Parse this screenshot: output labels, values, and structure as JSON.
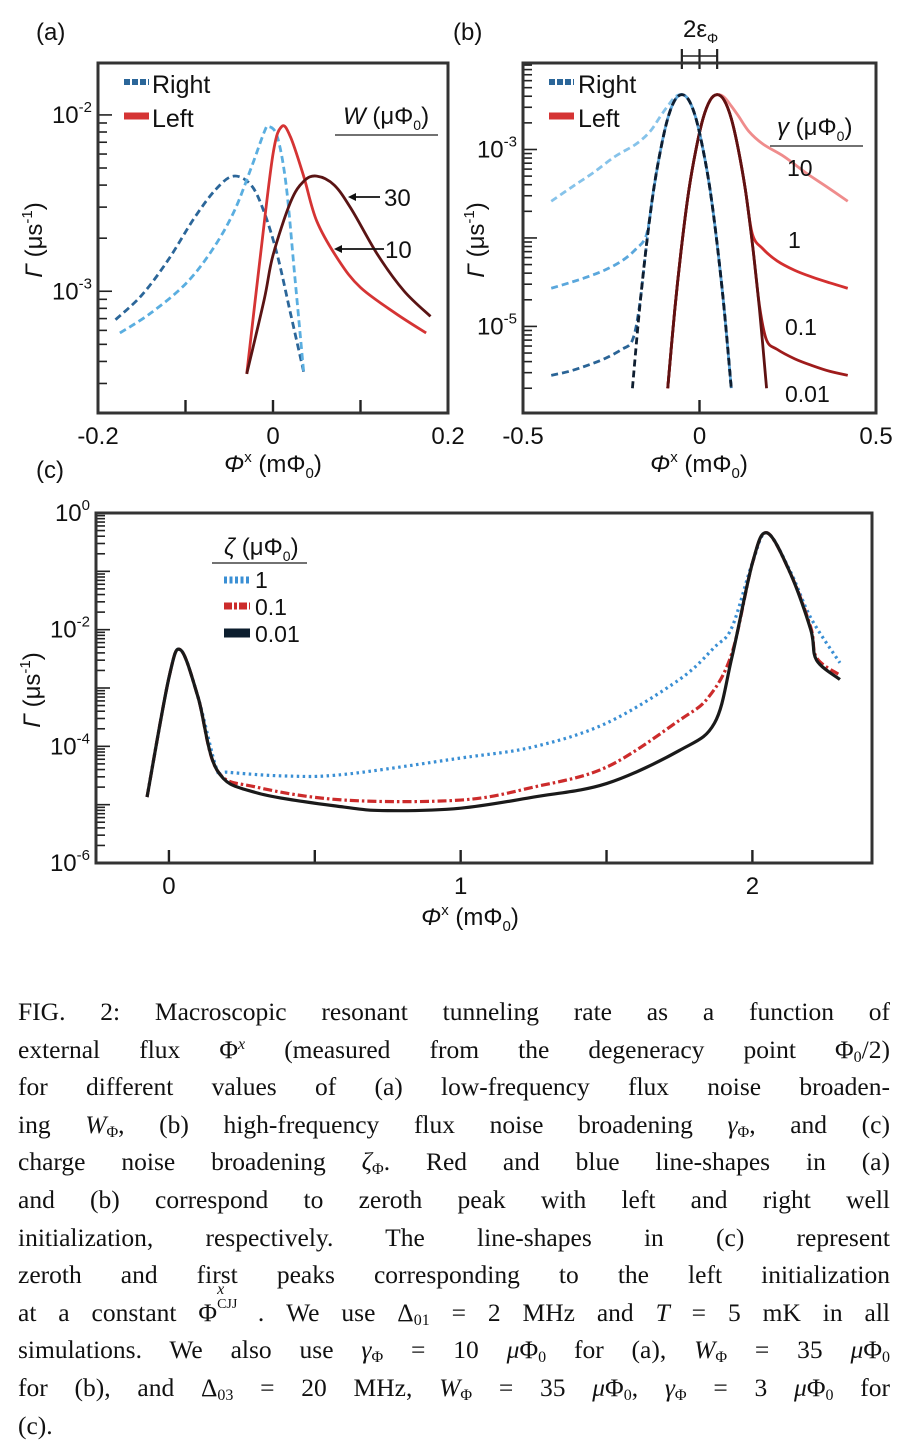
{
  "figure": {
    "panel_labels": [
      "(a)",
      "(b)",
      "(c)"
    ],
    "y_axis_label": {
      "symbol": "Γ",
      "unit": "(μs",
      "exp": "-1",
      "close": ")"
    },
    "x_axis_label": {
      "symbol": "Φ",
      "sup": "x",
      "unit": "(mΦ",
      "sub": "0",
      "close": ")"
    },
    "panel_a": {
      "legend": {
        "right": "Right",
        "left": "Left"
      },
      "legend_title": {
        "symbol": "W",
        "unit": " (μΦ",
        "sub": "0",
        "close": ")"
      },
      "annotations": [
        "30",
        "10"
      ]
    },
    "panel_b": {
      "legend": {
        "right": "Right",
        "left": "Left"
      },
      "legend_title": {
        "symbol": "γ",
        "unit": " (μΦ",
        "sub": "0",
        "close": ")"
      },
      "curve_labels": [
        "10",
        "1",
        "0.1",
        "0.01"
      ],
      "top_annotation": {
        "main": "2ε",
        "sub": "Φ"
      }
    },
    "panel_c": {
      "legend_title": {
        "symbol": "ζ",
        "unit": " (μΦ",
        "sub": "0",
        "close": ")"
      },
      "legend": [
        "1",
        "0.1",
        "0.01"
      ]
    }
  },
  "chart_data": [
    {
      "panel": "(a)",
      "type": "line",
      "yscale": "log",
      "xlim": [
        -0.2,
        0.2
      ],
      "ylim": [
        0.000204,
        0.0197
      ],
      "xtick_labels": [
        {
          "value": -0.2,
          "label": "-0.2"
        },
        {
          "value": 0,
          "label": "0"
        },
        {
          "value": 0.2,
          "label": "0.2"
        }
      ],
      "xtick_marks": [
        -0.1,
        0,
        0.1
      ],
      "ytick_labels": [
        {
          "value": 0.01,
          "base": "10",
          "exp": "-2"
        },
        {
          "value": 0.001,
          "base": "10",
          "exp": "-3"
        }
      ],
      "legend_placement": "top-left",
      "series": [
        {
          "well": "Right",
          "W": "30",
          "color": "#2b6699",
          "style": "dashed",
          "x": [
            -0.18,
            -0.15,
            -0.12,
            -0.09,
            -0.065,
            -0.045,
            -0.025,
            -0.01,
            0.005,
            0.02,
            0.035
          ],
          "y": [
            0.00069,
            0.00095,
            0.0015,
            0.0026,
            0.0038,
            0.0045,
            0.004,
            0.0028,
            0.0016,
            0.00075,
            0.00035
          ]
        },
        {
          "well": "Right",
          "W": "10",
          "color": "#5aaee0",
          "style": "dashed",
          "x": [
            -0.175,
            -0.14,
            -0.1,
            -0.07,
            -0.045,
            -0.025,
            -0.01,
            -0.005,
            0.005,
            0.015,
            0.025,
            0.035
          ],
          "y": [
            0.00058,
            0.00075,
            0.0011,
            0.0017,
            0.0028,
            0.005,
            0.008,
            0.0086,
            0.0075,
            0.004,
            0.0012,
            0.00035
          ]
        },
        {
          "well": "Left",
          "W": "10",
          "color": "#d53434",
          "style": "solid",
          "x": [
            -0.03,
            -0.015,
            0.0,
            0.01,
            0.02,
            0.035,
            0.05,
            0.075,
            0.1,
            0.14,
            0.175
          ],
          "y": [
            0.00034,
            0.0015,
            0.006,
            0.0086,
            0.0075,
            0.0045,
            0.0025,
            0.0015,
            0.00105,
            0.00075,
            0.00058
          ]
        },
        {
          "well": "Left",
          "W": "30",
          "color": "#5a1414",
          "style": "solid",
          "x": [
            -0.03,
            -0.01,
            0.0,
            0.02,
            0.035,
            0.05,
            0.07,
            0.09,
            0.12,
            0.15,
            0.18
          ],
          "y": [
            0.00034,
            0.0009,
            0.0016,
            0.0032,
            0.0042,
            0.0045,
            0.004,
            0.0029,
            0.0016,
            0.001,
            0.00072
          ]
        }
      ]
    },
    {
      "panel": "(b)",
      "type": "line",
      "yscale": "log",
      "xlim": [
        -0.5,
        0.5
      ],
      "ylim": [
        1.05e-06,
        0.0095
      ],
      "xtick_labels": [
        {
          "value": -0.5,
          "label": "-0.5"
        },
        {
          "value": 0,
          "label": "0"
        },
        {
          "value": 0.5,
          "label": "0.5"
        }
      ],
      "xtick_marks": [
        0
      ],
      "top_marks": [
        -0.05,
        0,
        0.05
      ],
      "ytick_labels": [
        {
          "value": 0.001,
          "base": "10",
          "exp": "-3"
        },
        {
          "value": 1e-05,
          "base": "10",
          "exp": "-5"
        }
      ],
      "legend_placement": "top-left",
      "series": [
        {
          "well": "Left",
          "gamma": "10",
          "color": "#ef8c8c",
          "style": "solid",
          "x": [
            -0.09,
            -0.07,
            -0.05,
            -0.03,
            -0.01,
            0.01,
            0.03,
            0.05,
            0.07,
            0.09,
            0.11,
            0.14,
            0.18,
            0.24,
            0.3,
            0.36,
            0.42
          ],
          "y": [
            2e-06,
            1.55e-05,
            8.5e-05,
            0.00035,
            0.001,
            0.00224,
            0.0036,
            0.00417,
            0.0039,
            0.0031,
            0.0024,
            0.0016,
            0.00115,
            0.00083,
            0.00055,
            0.00038,
            0.00026
          ]
        },
        {
          "well": "Left",
          "gamma": "1",
          "color": "#d32f2f",
          "style": "solid",
          "x": [
            -0.09,
            -0.07,
            -0.05,
            -0.03,
            -0.01,
            0.01,
            0.03,
            0.05,
            0.07,
            0.09,
            0.11,
            0.13,
            0.15,
            0.18,
            0.22,
            0.27,
            0.32,
            0.37,
            0.42
          ],
          "y": [
            2e-06,
            1.55e-05,
            8.5e-05,
            0.00035,
            0.001,
            0.00224,
            0.0036,
            0.00417,
            0.0036,
            0.00224,
            0.001,
            0.00035,
            0.00011,
            7.5e-05,
            5.5e-05,
            4.3e-05,
            3.6e-05,
            3.1e-05,
            2.7e-05
          ]
        },
        {
          "well": "Left",
          "gamma": "0.1",
          "color": "#9e1b1b",
          "style": "solid",
          "x": [
            -0.09,
            -0.07,
            -0.05,
            -0.03,
            -0.01,
            0.01,
            0.03,
            0.05,
            0.07,
            0.09,
            0.11,
            0.13,
            0.15,
            0.17,
            0.19,
            0.22,
            0.27,
            0.32,
            0.37,
            0.42
          ],
          "y": [
            2e-06,
            1.55e-05,
            8.5e-05,
            0.00035,
            0.001,
            0.00224,
            0.0036,
            0.00417,
            0.0036,
            0.00224,
            0.001,
            0.00035,
            8.5e-05,
            1.7e-05,
            7e-06,
            5.5e-06,
            4.3e-06,
            3.6e-06,
            3.1e-06,
            2.8e-06
          ]
        },
        {
          "well": "Left",
          "gamma": "0.01",
          "color": "#5e1212",
          "style": "solid",
          "x": [
            -0.09,
            -0.07,
            -0.05,
            -0.03,
            -0.01,
            0.01,
            0.03,
            0.05,
            0.07,
            0.09,
            0.11,
            0.13,
            0.15,
            0.17,
            0.19
          ],
          "y": [
            2e-06,
            1.55e-05,
            8.5e-05,
            0.00035,
            0.001,
            0.00224,
            0.0036,
            0.00417,
            0.0036,
            0.00224,
            0.001,
            0.00035,
            8.5e-05,
            1.55e-05,
            2e-06
          ]
        },
        {
          "well": "Right",
          "gamma": "10",
          "color": "#86c3ea",
          "style": "dashed",
          "x": [
            -0.42,
            -0.36,
            -0.3,
            -0.24,
            -0.18,
            -0.14,
            -0.11,
            -0.09,
            -0.07,
            -0.05,
            -0.03,
            -0.01,
            0.01,
            0.03,
            0.05,
            0.07,
            0.09
          ],
          "y": [
            0.00026,
            0.00038,
            0.00055,
            0.00083,
            0.00115,
            0.0016,
            0.0024,
            0.0031,
            0.0039,
            0.00417,
            0.0036,
            0.00224,
            0.001,
            0.00035,
            8.5e-05,
            1.55e-05,
            2e-06
          ]
        },
        {
          "well": "Right",
          "gamma": "1",
          "color": "#5aa7dc",
          "style": "dashed",
          "x": [
            -0.42,
            -0.37,
            -0.32,
            -0.27,
            -0.22,
            -0.18,
            -0.15,
            -0.13,
            -0.11,
            -0.09,
            -0.07,
            -0.05,
            -0.03,
            -0.01,
            0.01,
            0.03,
            0.05,
            0.07,
            0.09
          ],
          "y": [
            2.7e-05,
            3.1e-05,
            3.6e-05,
            4.3e-05,
            5.5e-05,
            7.5e-05,
            0.00011,
            0.00035,
            0.001,
            0.00224,
            0.0036,
            0.00417,
            0.0036,
            0.00224,
            0.001,
            0.00035,
            8.5e-05,
            1.55e-05,
            2e-06
          ]
        },
        {
          "well": "Right",
          "gamma": "0.1",
          "color": "#2a6496",
          "style": "dashed",
          "x": [
            -0.42,
            -0.37,
            -0.32,
            -0.27,
            -0.22,
            -0.19,
            -0.17,
            -0.15,
            -0.13,
            -0.11,
            -0.09,
            -0.07,
            -0.05,
            -0.03,
            -0.01,
            0.01,
            0.03,
            0.05,
            0.07,
            0.09
          ],
          "y": [
            2.8e-06,
            3.1e-06,
            3.6e-06,
            4.3e-06,
            5.5e-06,
            7e-06,
            1.7e-05,
            8.5e-05,
            0.00035,
            0.001,
            0.00224,
            0.0036,
            0.00417,
            0.0036,
            0.00224,
            0.001,
            0.00035,
            8.5e-05,
            1.55e-05,
            2e-06
          ]
        },
        {
          "well": "Right",
          "gamma": "0.01",
          "color": "#0f1e30",
          "style": "dashed",
          "x": [
            -0.19,
            -0.17,
            -0.15,
            -0.13,
            -0.11,
            -0.09,
            -0.07,
            -0.05,
            -0.03,
            -0.01,
            0.01,
            0.03,
            0.05,
            0.07,
            0.09
          ],
          "y": [
            2e-06,
            1.55e-05,
            8.5e-05,
            0.00035,
            0.001,
            0.00224,
            0.0036,
            0.00417,
            0.0036,
            0.00224,
            0.001,
            0.00035,
            8.5e-05,
            1.55e-05,
            2e-06
          ]
        }
      ]
    },
    {
      "panel": "(c)",
      "type": "line",
      "yscale": "log",
      "xlim": [
        -0.25,
        2.41
      ],
      "ylim": [
        1e-06,
        1
      ],
      "xtick_labels": [
        {
          "value": 0,
          "label": "0"
        },
        {
          "value": 1,
          "label": "1"
        },
        {
          "value": 2,
          "label": "2"
        }
      ],
      "xtick_marks": [
        0,
        0.5,
        1,
        1.5,
        2
      ],
      "ytick_labels": [
        {
          "value": 1,
          "base": "10",
          "exp": "0"
        },
        {
          "value": 0.01,
          "base": "10",
          "exp": "-2"
        },
        {
          "value": 0.0001,
          "base": "10",
          "exp": "-4"
        },
        {
          "value": 1e-06,
          "base": "10",
          "exp": "-6"
        }
      ],
      "legend_placement": "top-left",
      "series": [
        {
          "zeta": "1",
          "color": "#3a8fd4",
          "style": "dotted",
          "x": [
            -0.075,
            0.0,
            0.04,
            0.1,
            0.165,
            0.2,
            0.4,
            0.6,
            1.0,
            1.25,
            1.5,
            1.75,
            1.87,
            1.93,
            2.0,
            2.05,
            2.13,
            2.2,
            2.3
          ],
          "y": [
            1.35e-05,
            0.0015,
            0.0045,
            0.00069,
            3.9e-05,
            3.6e-05,
            3.1e-05,
            3.3e-05,
            6.3e-05,
            9.8e-05,
            0.00025,
            0.0014,
            0.005,
            0.011,
            0.14,
            0.457,
            0.1,
            0.016,
            0.0027
          ]
        },
        {
          "zeta": "0.1",
          "color": "#cc2b2b",
          "style": "dashdot",
          "x": [
            -0.075,
            0.0,
            0.04,
            0.1,
            0.165,
            0.3,
            0.6,
            1.0,
            1.25,
            1.5,
            1.75,
            1.85,
            1.93,
            2.0,
            2.05,
            2.13,
            2.2,
            2.22,
            2.3
          ],
          "y": [
            1.35e-05,
            0.0015,
            0.0045,
            0.00069,
            3.9e-05,
            2e-05,
            1.2e-05,
            1.2e-05,
            2e-05,
            4.4e-05,
            0.00028,
            0.0007,
            0.004,
            0.138,
            0.457,
            0.093,
            0.011,
            0.0033,
            0.00166
          ]
        },
        {
          "zeta": "0.01",
          "color": "#1a1a1a",
          "style": "solid",
          "x": [
            -0.075,
            0.0,
            0.04,
            0.1,
            0.165,
            0.3,
            0.6,
            0.75,
            1.0,
            1.25,
            1.5,
            1.75,
            1.87,
            1.93,
            2.0,
            2.05,
            2.13,
            2.2,
            2.22,
            2.3
          ],
          "y": [
            1.35e-05,
            0.0015,
            0.0045,
            0.00069,
            3.9e-05,
            1.6e-05,
            9.1e-06,
            7.9e-06,
            8.7e-06,
            1.35e-05,
            2.3e-05,
            8.5e-05,
            0.00025,
            0.0034,
            0.138,
            0.457,
            0.093,
            0.01,
            0.003,
            0.0014
          ]
        }
      ]
    }
  ],
  "caption": {
    "lines": [
      [
        "FIG. 2:   Macroscopic resonant tunneling rate as a function of"
      ],
      [
        "external flux Φ",
        [
          "sup",
          "x"
        ],
        " (measured from the degeneracy point Φ",
        [
          "sub",
          "0"
        ],
        "/2)"
      ],
      [
        "for different values of (a) low-frequency flux noise broaden-"
      ],
      [
        "ing ",
        [
          "i",
          "W"
        ],
        [
          "sub",
          "Φ"
        ],
        ", (b) high-frequency flux noise broadening ",
        [
          "i",
          "γ"
        ],
        [
          "sub",
          "Φ"
        ],
        ", and (c)"
      ],
      [
        "charge noise broadening ",
        [
          "i",
          "ζ"
        ],
        [
          "sub",
          "Φ"
        ],
        ".  Red and blue line-shapes in (a)"
      ],
      [
        "and (b) correspond to zeroth peak with left and right well"
      ],
      [
        "initialization, respectively.  The line-shapes in (c) represent"
      ],
      [
        "zeroth and first peaks corresponding to the left initialization"
      ],
      [
        "at a constant Φ",
        [
          "subsup",
          "x",
          "CJJ"
        ],
        ". We use Δ",
        [
          "sub",
          "01"
        ],
        " = 2 MHz and ",
        [
          "i",
          "T"
        ],
        " = 5 mK in all"
      ],
      [
        "simulations.  We also use ",
        [
          "i",
          "γ"
        ],
        [
          "sub",
          "Φ"
        ],
        " = 10 ",
        [
          "i",
          "μ"
        ],
        "Φ",
        [
          "sub",
          "0"
        ],
        " for (a), ",
        [
          "i",
          "W"
        ],
        [
          "sub",
          "Φ"
        ],
        " = 35 ",
        [
          "i",
          "μ"
        ],
        "Φ",
        [
          "sub",
          "0"
        ]
      ],
      [
        "for (b), and Δ",
        [
          "sub",
          "03"
        ],
        " = 20 MHz, ",
        [
          "i",
          "W"
        ],
        [
          "sub",
          "Φ"
        ],
        " = 35 ",
        [
          "i",
          "μ"
        ],
        "Φ",
        [
          "sub",
          "0"
        ],
        ", ",
        [
          "i",
          "γ"
        ],
        [
          "sub",
          "Φ"
        ],
        " = 3 ",
        [
          "i",
          "μ"
        ],
        "Φ",
        [
          "sub",
          "0"
        ],
        " for"
      ],
      [
        "(c)."
      ]
    ]
  }
}
